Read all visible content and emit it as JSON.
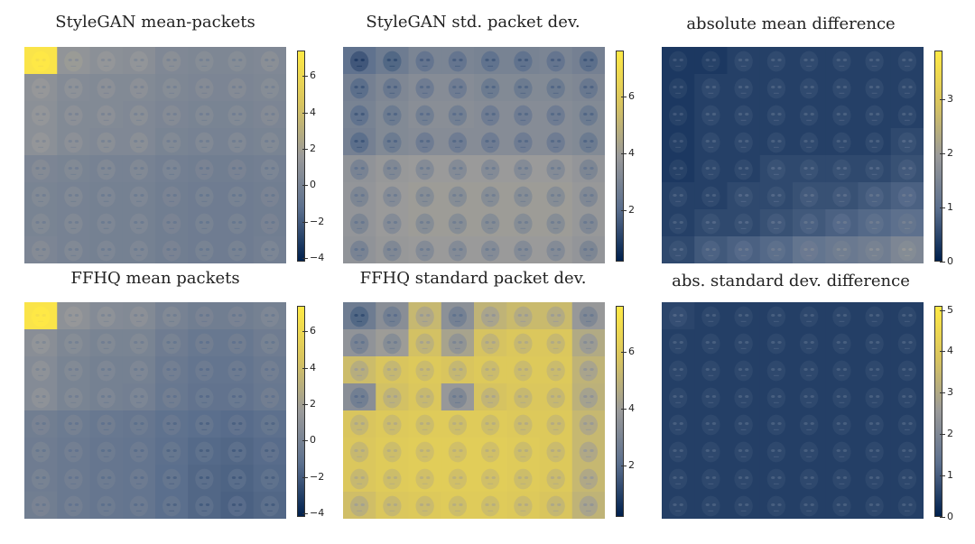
{
  "figure": {
    "grid": {
      "rows": 8,
      "cols": 8
    },
    "colormap": [
      "#00204d",
      "#5b6f8d",
      "#9a9a9a",
      "#d8c45f",
      "#ffe945"
    ]
  },
  "chart_data": [
    {
      "type": "heatmap",
      "title": "StyleGAN mean-packets",
      "colorbar": {
        "min": -4.2,
        "max": 7.4,
        "ticks": [
          6,
          4,
          2,
          0,
          -2,
          -4
        ],
        "tick_labels": [
          "6",
          "4",
          "2",
          "0",
          "−2",
          "−4"
        ]
      },
      "face_pattern": "mean",
      "cell_values": [
        [
          7.0,
          1.2,
          0.9,
          0.8,
          0.4,
          0.3,
          0.3,
          0.4
        ],
        [
          1.0,
          0.6,
          0.5,
          0.5,
          0.3,
          0.2,
          0.2,
          0.3
        ],
        [
          0.9,
          0.5,
          0.5,
          0.4,
          0.2,
          0.1,
          0.1,
          0.2
        ],
        [
          0.9,
          0.5,
          0.4,
          0.4,
          0.1,
          0.0,
          0.0,
          0.1
        ],
        [
          0.2,
          0.1,
          0.0,
          0.0,
          -0.2,
          -0.3,
          -0.3,
          -0.2
        ],
        [
          0.1,
          0.0,
          -0.1,
          -0.1,
          -0.3,
          -0.4,
          -0.4,
          -0.3
        ],
        [
          0.1,
          0.0,
          -0.1,
          -0.1,
          -0.3,
          -0.4,
          -0.4,
          -0.3
        ],
        [
          0.2,
          0.0,
          -0.1,
          -0.1,
          -0.3,
          -0.4,
          -0.4,
          -0.2
        ]
      ]
    },
    {
      "type": "heatmap",
      "title": "StyleGAN std. packet dev.",
      "colorbar": {
        "min": 0.2,
        "max": 7.6,
        "ticks": [
          6,
          4,
          2
        ],
        "tick_labels": [
          "6",
          "4",
          "2"
        ]
      },
      "face_pattern": "std",
      "cell_values": [
        [
          2.2,
          2.6,
          3.0,
          3.0,
          2.9,
          2.9,
          3.0,
          2.8
        ],
        [
          2.8,
          3.1,
          3.3,
          3.3,
          3.2,
          3.2,
          3.2,
          3.1
        ],
        [
          2.9,
          3.2,
          3.4,
          3.4,
          3.3,
          3.3,
          3.3,
          3.2
        ],
        [
          2.8,
          3.2,
          3.3,
          3.3,
          3.3,
          3.3,
          3.3,
          3.2
        ],
        [
          3.6,
          3.8,
          3.9,
          3.9,
          3.9,
          3.9,
          3.9,
          3.7
        ],
        [
          3.7,
          3.9,
          4.0,
          4.0,
          4.0,
          4.0,
          4.0,
          3.8
        ],
        [
          3.7,
          3.9,
          4.0,
          4.0,
          4.0,
          4.0,
          4.0,
          3.8
        ],
        [
          3.6,
          3.8,
          3.9,
          3.9,
          3.9,
          3.9,
          3.9,
          3.7
        ]
      ]
    },
    {
      "type": "heatmap",
      "title": "absolute mean difference",
      "colorbar": {
        "min": 0,
        "max": 3.9,
        "ticks": [
          3,
          2,
          1,
          0
        ],
        "tick_labels": [
          "3",
          "2",
          "1",
          "0"
        ]
      },
      "face_pattern": "diff",
      "cell_values": [
        [
          0.3,
          0.3,
          0.4,
          0.4,
          0.4,
          0.4,
          0.4,
          0.4
        ],
        [
          0.3,
          0.4,
          0.4,
          0.4,
          0.4,
          0.4,
          0.4,
          0.4
        ],
        [
          0.3,
          0.4,
          0.4,
          0.4,
          0.4,
          0.4,
          0.4,
          0.4
        ],
        [
          0.3,
          0.4,
          0.4,
          0.4,
          0.4,
          0.4,
          0.4,
          0.5
        ],
        [
          0.3,
          0.4,
          0.4,
          0.5,
          0.5,
          0.5,
          0.5,
          0.6
        ],
        [
          0.4,
          0.4,
          0.5,
          0.5,
          0.6,
          0.6,
          0.7,
          0.8
        ],
        [
          0.4,
          0.5,
          0.5,
          0.6,
          0.7,
          0.8,
          0.9,
          1.0
        ],
        [
          0.5,
          0.7,
          0.8,
          0.9,
          1.1,
          1.2,
          1.3,
          1.5
        ]
      ]
    },
    {
      "type": "heatmap",
      "title": "FFHQ mean packets",
      "colorbar": {
        "min": -4.2,
        "max": 7.4,
        "ticks": [
          6,
          4,
          2,
          0,
          -2,
          -4
        ],
        "tick_labels": [
          "6",
          "4",
          "2",
          "0",
          "−2",
          "−4"
        ]
      },
      "face_pattern": "mean",
      "cell_values": [
        [
          7.0,
          1.0,
          0.6,
          0.5,
          0.0,
          -0.3,
          -0.3,
          -0.1
        ],
        [
          0.8,
          0.3,
          0.1,
          0.1,
          -0.4,
          -0.7,
          -0.7,
          -0.4
        ],
        [
          0.6,
          0.1,
          -0.1,
          -0.1,
          -0.6,
          -0.9,
          -0.9,
          -0.6
        ],
        [
          0.6,
          0.1,
          -0.1,
          -0.2,
          -0.7,
          -1.0,
          -1.0,
          -0.7
        ],
        [
          -0.3,
          -0.5,
          -0.7,
          -0.8,
          -1.1,
          -1.3,
          -1.4,
          -1.2
        ],
        [
          -0.4,
          -0.6,
          -0.8,
          -0.9,
          -1.2,
          -1.5,
          -1.6,
          -1.4
        ],
        [
          -0.4,
          -0.6,
          -0.8,
          -0.9,
          -1.3,
          -1.6,
          -1.7,
          -1.5
        ],
        [
          -0.3,
          -0.6,
          -0.8,
          -0.9,
          -1.3,
          -1.6,
          -1.8,
          -1.6
        ]
      ]
    },
    {
      "type": "heatmap",
      "title": "FFHQ standard packet dev.",
      "colorbar": {
        "min": 0.2,
        "max": 7.6,
        "ticks": [
          6,
          4,
          2
        ],
        "tick_labels": [
          "6",
          "4",
          "2"
        ]
      },
      "face_pattern": "std",
      "cell_values": [
        [
          2.6,
          3.4,
          5.2,
          3.5,
          5.0,
          5.3,
          5.3,
          3.8
        ],
        [
          3.6,
          4.0,
          5.6,
          4.3,
          5.7,
          5.9,
          5.9,
          4.6
        ],
        [
          5.4,
          5.8,
          6.0,
          5.8,
          6.0,
          6.0,
          6.0,
          5.0
        ],
        [
          3.4,
          5.6,
          5.9,
          3.8,
          5.7,
          5.9,
          5.9,
          4.9
        ],
        [
          5.8,
          6.0,
          6.1,
          6.1,
          6.1,
          6.0,
          6.0,
          5.2
        ],
        [
          5.9,
          6.1,
          6.2,
          6.2,
          6.2,
          6.1,
          6.0,
          5.2
        ],
        [
          5.9,
          6.1,
          6.2,
          6.2,
          6.2,
          6.1,
          6.0,
          5.2
        ],
        [
          5.5,
          5.9,
          6.0,
          6.1,
          6.1,
          6.0,
          5.8,
          5.0
        ]
      ]
    },
    {
      "type": "heatmap",
      "title": "abs. standard dev. difference",
      "colorbar": {
        "min": 0,
        "max": 5.1,
        "ticks": [
          5,
          4,
          3,
          2,
          1,
          0
        ],
        "tick_labels": [
          "5",
          "4",
          "3",
          "2",
          "1",
          "0"
        ]
      },
      "face_pattern": "diff",
      "cell_values": [
        [
          0.6,
          0.5,
          0.5,
          0.5,
          0.5,
          0.5,
          0.5,
          0.5
        ],
        [
          0.5,
          0.5,
          0.5,
          0.5,
          0.5,
          0.5,
          0.5,
          0.5
        ],
        [
          0.5,
          0.5,
          0.5,
          0.5,
          0.5,
          0.5,
          0.5,
          0.5
        ],
        [
          0.5,
          0.5,
          0.5,
          0.5,
          0.5,
          0.5,
          0.5,
          0.5
        ],
        [
          0.5,
          0.5,
          0.5,
          0.5,
          0.5,
          0.5,
          0.5,
          0.5
        ],
        [
          0.5,
          0.5,
          0.5,
          0.5,
          0.5,
          0.5,
          0.5,
          0.5
        ],
        [
          0.5,
          0.5,
          0.5,
          0.5,
          0.5,
          0.5,
          0.5,
          0.5
        ],
        [
          0.5,
          0.5,
          0.5,
          0.5,
          0.5,
          0.5,
          0.5,
          0.5
        ]
      ]
    }
  ]
}
